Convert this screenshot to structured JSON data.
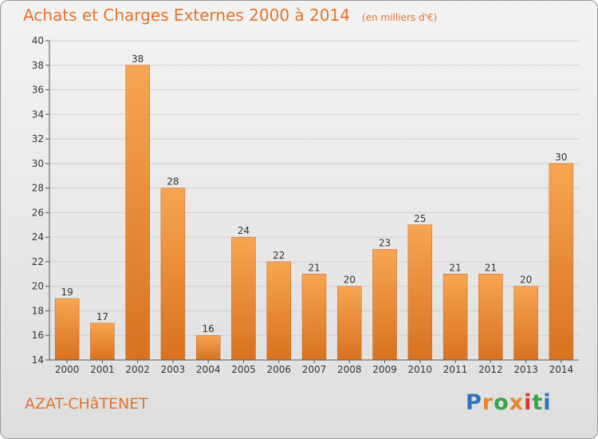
{
  "header": {
    "title": "Achats et Charges Externes 2000 à 2014",
    "unit": "(en milliers d'€)"
  },
  "footer": {
    "commune": "AZAT-CHâTENET",
    "logo_text": "Proxiti",
    "logo_colors": [
      "#2f73c0",
      "#e8872a",
      "#3aa546",
      "#e8872a",
      "#e02f2f",
      "#3aa546",
      "#2f73c0"
    ]
  },
  "colors": {
    "accent": "#e2742c",
    "bar_top": "#f7a552",
    "bar_bottom": "#d8721f",
    "bar_edge": "#c8651c",
    "grid": "#cfcfcf",
    "axis": "#555555",
    "text": "#333333"
  },
  "chart_data": {
    "type": "bar",
    "categories": [
      "2000",
      "2001",
      "2002",
      "2003",
      "2004",
      "2005",
      "2006",
      "2007",
      "2008",
      "2009",
      "2010",
      "2011",
      "2012",
      "2013",
      "2014"
    ],
    "values": [
      19,
      17,
      38,
      28,
      16,
      24,
      22,
      21,
      20,
      23,
      25,
      21,
      21,
      20,
      30
    ],
    "ylim": [
      14,
      40
    ],
    "yticks": [
      14,
      16,
      18,
      20,
      22,
      24,
      26,
      28,
      30,
      32,
      34,
      36,
      38,
      40
    ],
    "grid": "horizontal",
    "data_labels": true,
    "legend": "none"
  }
}
